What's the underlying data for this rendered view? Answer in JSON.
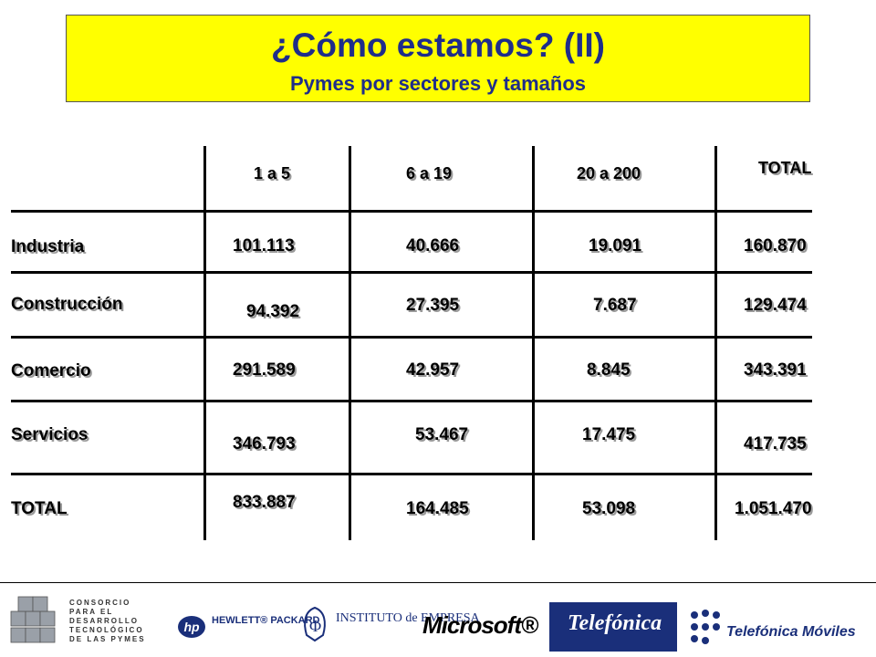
{
  "header": {
    "title": "¿Cómo estamos? (II)",
    "subtitle": "Pymes por sectores y tamaños"
  },
  "chart_data": {
    "type": "table",
    "columns": [
      "1 a 5",
      "6 a 19",
      "20 a 200",
      "TOTAL"
    ],
    "rows": [
      {
        "label": "Industria",
        "values": [
          "101.113",
          "40.666",
          "19.091",
          "160.870"
        ]
      },
      {
        "label": "Construcción",
        "values": [
          "94.392",
          "27.395",
          "7.687",
          "129.474"
        ]
      },
      {
        "label": "Comercio",
        "values": [
          "291.589",
          "42.957",
          "8.845",
          "343.391"
        ]
      },
      {
        "label": "Servicios",
        "values": [
          "346.793",
          "53.467",
          "17.475",
          "417.735"
        ]
      },
      {
        "label": "TOTAL",
        "values": [
          "833.887",
          "164.485",
          "53.098",
          "1.051.470"
        ]
      }
    ]
  },
  "footer": {
    "logos": {
      "consorcio": "CONSORCIO PARA EL DESARROLLO TECNOLÓGICO DE LAS PYMES",
      "hp_mark": "hp",
      "hp": "HEWLETT® PACKARD",
      "ie": "INSTITUTO de EMPRESA",
      "microsoft": "Microsoft®",
      "telefonica": "Telefónica",
      "telefonica_moviles": "Telefónica Móviles"
    }
  }
}
